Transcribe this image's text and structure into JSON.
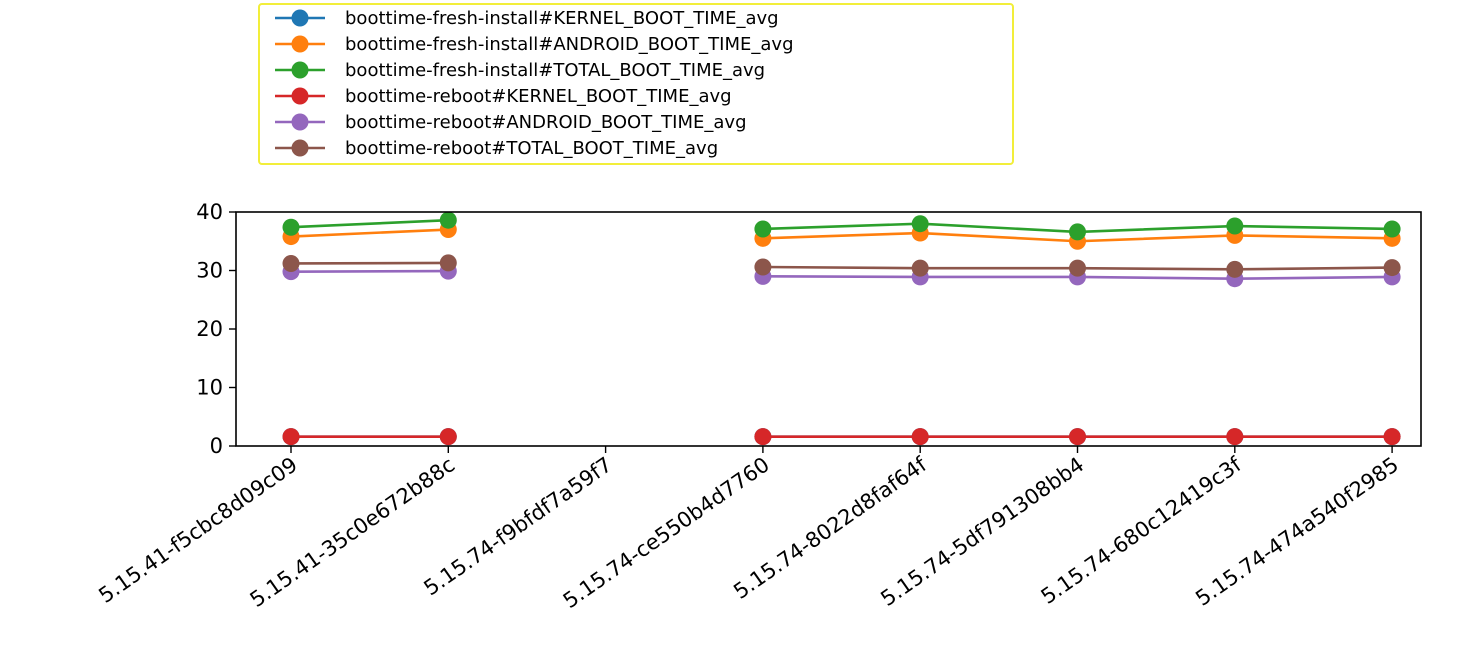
{
  "chart_data": {
    "type": "line",
    "title": "",
    "xlabel": "",
    "ylabel": "",
    "categories": [
      "5.15.41-f5cbc8d09c09",
      "5.15.41-35c0e672b88c",
      "5.15.74-f9bfdf7a59f7",
      "5.15.74-ce550b4d7760",
      "5.15.74-8022d8faf64f",
      "5.15.74-5df791308bb4",
      "5.15.74-680c12419c3f",
      "5.15.74-474a540f2985"
    ],
    "ylim": [
      0,
      40
    ],
    "yticks": [
      "0",
      "10",
      "20",
      "30",
      "40"
    ],
    "grid": false,
    "legend_position": "top (above plot)",
    "series": [
      {
        "name": "boottime-fresh-install#KERNEL_BOOT_TIME_avg",
        "color": "#1f77b4",
        "values": [
          1.6,
          1.6,
          null,
          1.6,
          1.6,
          1.6,
          1.6,
          1.6
        ]
      },
      {
        "name": "boottime-fresh-install#ANDROID_BOOT_TIME_avg",
        "color": "#ff7f0e",
        "values": [
          35.8,
          37.0,
          null,
          35.5,
          36.4,
          35.0,
          36.0,
          35.5
        ]
      },
      {
        "name": "boottime-fresh-install#TOTAL_BOOT_TIME_avg",
        "color": "#2ca02c",
        "values": [
          37.4,
          38.6,
          null,
          37.1,
          38.0,
          36.6,
          37.6,
          37.1
        ]
      },
      {
        "name": "boottime-reboot#KERNEL_BOOT_TIME_avg",
        "color": "#d62728",
        "values": [
          1.6,
          1.6,
          null,
          1.6,
          1.6,
          1.6,
          1.6,
          1.6
        ]
      },
      {
        "name": "boottime-reboot#ANDROID_BOOT_TIME_avg",
        "color": "#9467bd",
        "values": [
          29.8,
          29.9,
          null,
          29.0,
          28.9,
          28.9,
          28.6,
          28.9
        ]
      },
      {
        "name": "boottime-reboot#TOTAL_BOOT_TIME_avg",
        "color": "#8c564b",
        "values": [
          31.2,
          31.3,
          null,
          30.6,
          30.4,
          30.4,
          30.2,
          30.5
        ]
      }
    ]
  }
}
